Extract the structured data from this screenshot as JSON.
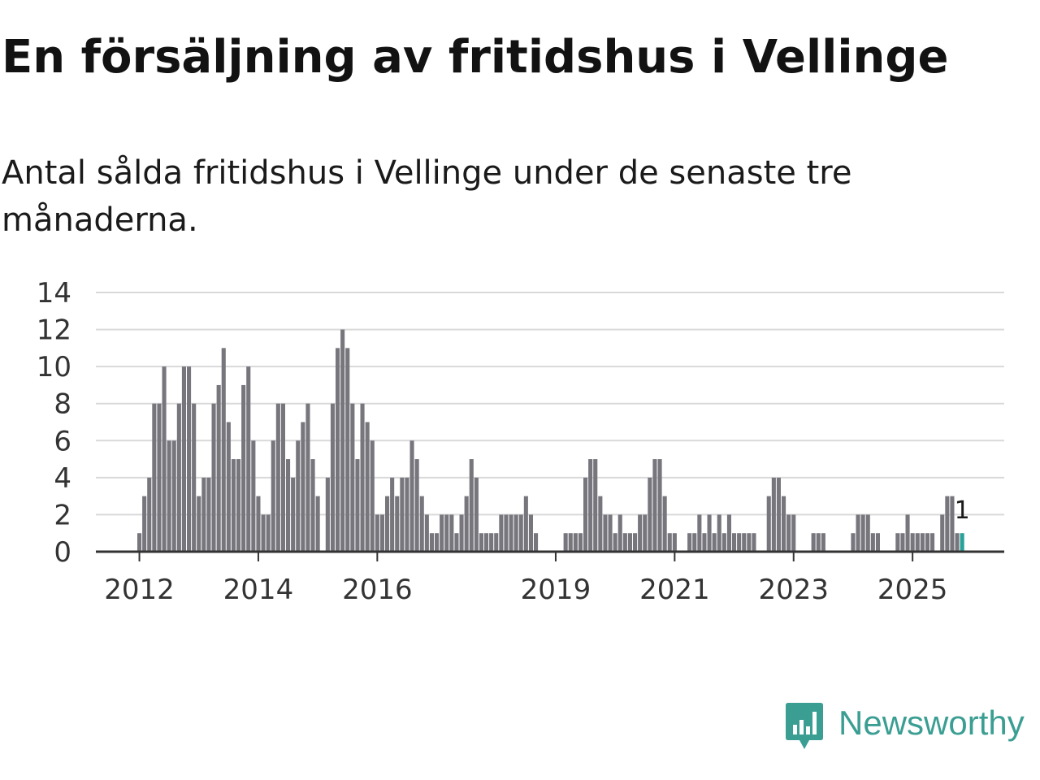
{
  "title": "En försäljning av fritidshus i Vellinge",
  "subtitle": "Antal sålda fritidshus i Vellinge under de senaste tre månaderna.",
  "brand": {
    "name": "Newsworthy",
    "color": "#3b9e93",
    "icon": "newsworthy-chart-icon"
  },
  "colors": {
    "bar": "#77767d",
    "highlight": "#2aa198",
    "grid": "#d9d9d9",
    "axis": "#333333"
  },
  "chart_data": {
    "type": "bar",
    "title": "En försäljning av fritidshus i Vellinge",
    "xlabel": "",
    "ylabel": "",
    "ylim": [
      0,
      14
    ],
    "yticks": [
      "0",
      "2",
      "4",
      "6",
      "8",
      "10",
      "12",
      "14"
    ],
    "xtick_labels": [
      "2012",
      "2014",
      "2016",
      "2019",
      "2021",
      "2023",
      "2025"
    ],
    "xtick_indices": [
      0,
      24,
      48,
      84,
      108,
      132,
      156
    ],
    "start_index_offset": 0,
    "grid": true,
    "highlight_label": "1",
    "values": [
      1,
      3,
      4,
      8,
      8,
      10,
      6,
      6,
      8,
      10,
      10,
      8,
      3,
      4,
      4,
      8,
      9,
      11,
      7,
      5,
      5,
      9,
      10,
      6,
      3,
      2,
      2,
      6,
      8,
      8,
      5,
      4,
      6,
      7,
      8,
      5,
      3,
      0,
      4,
      8,
      11,
      12,
      11,
      8,
      5,
      8,
      7,
      6,
      2,
      2,
      3,
      4,
      3,
      4,
      4,
      6,
      5,
      3,
      2,
      1,
      1,
      2,
      2,
      2,
      1,
      2,
      3,
      5,
      4,
      1,
      1,
      1,
      1,
      2,
      2,
      2,
      2,
      2,
      3,
      2,
      1,
      0,
      0,
      0,
      0,
      0,
      1,
      1,
      1,
      1,
      4,
      5,
      5,
      3,
      2,
      2,
      1,
      2,
      1,
      1,
      1,
      2,
      2,
      4,
      5,
      5,
      3,
      1,
      1,
      0,
      0,
      1,
      1,
      2,
      1,
      2,
      1,
      2,
      1,
      2,
      1,
      1,
      1,
      1,
      1,
      0,
      0,
      3,
      4,
      4,
      3,
      2,
      2,
      0,
      0,
      0,
      1,
      1,
      1,
      0,
      0,
      0,
      0,
      0,
      1,
      2,
      2,
      2,
      1,
      1,
      0,
      0,
      0,
      1,
      1,
      2,
      1,
      1,
      1,
      1,
      1,
      0,
      2,
      3,
      3,
      1,
      1
    ],
    "highlight_indices": [
      166
    ]
  }
}
